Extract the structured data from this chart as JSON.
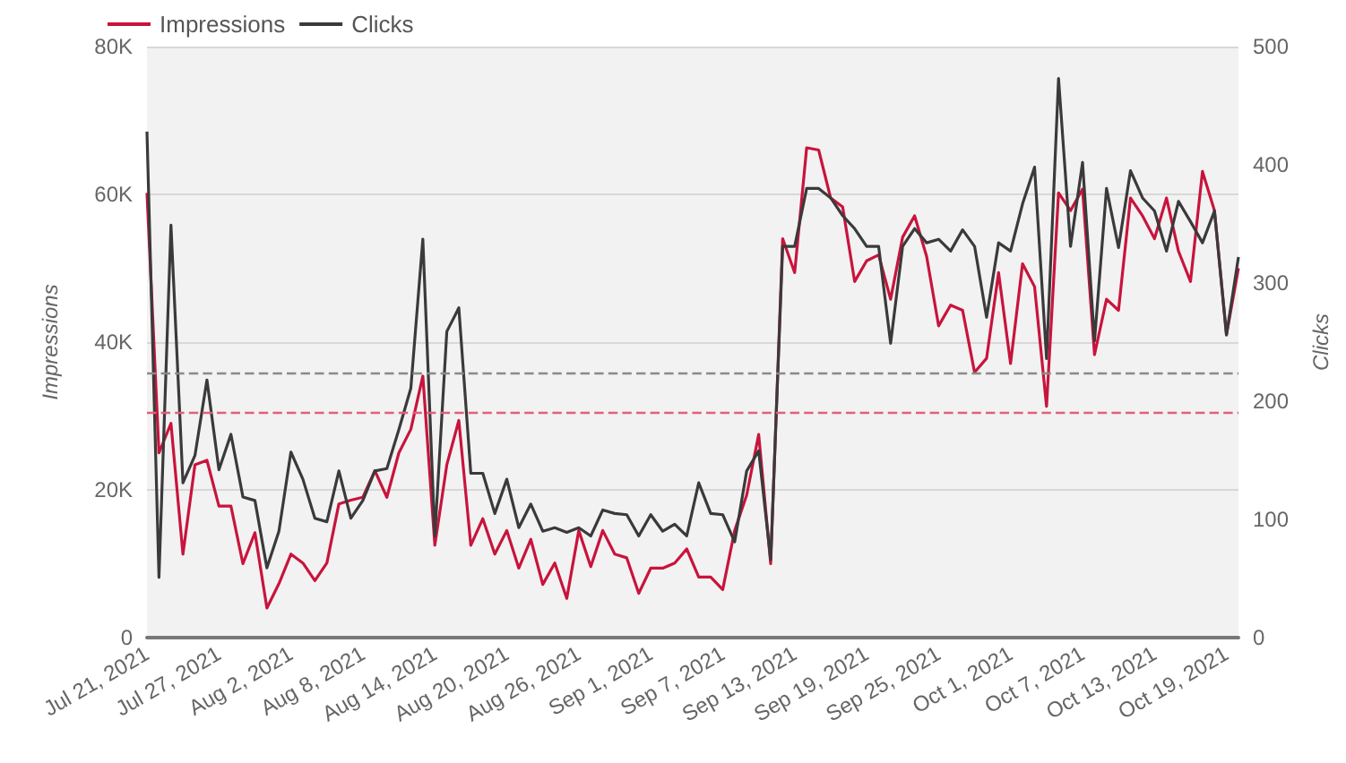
{
  "chart_data": {
    "type": "line",
    "ylabel": "Impressions",
    "y2label": "Clicks",
    "legend": "top left",
    "grid": "y",
    "marker": "none",
    "line_style": "solid",
    "x": [
      "2021-07-21",
      "2021-07-22",
      "2021-07-23",
      "2021-07-24",
      "2021-07-25",
      "2021-07-26",
      "2021-07-27",
      "2021-07-28",
      "2021-07-29",
      "2021-07-30",
      "2021-07-31",
      "2021-08-01",
      "2021-08-02",
      "2021-08-03",
      "2021-08-04",
      "2021-08-05",
      "2021-08-06",
      "2021-08-07",
      "2021-08-08",
      "2021-08-09",
      "2021-08-10",
      "2021-08-11",
      "2021-08-12",
      "2021-08-13",
      "2021-08-14",
      "2021-08-15",
      "2021-08-16",
      "2021-08-17",
      "2021-08-18",
      "2021-08-19",
      "2021-08-20",
      "2021-08-21",
      "2021-08-22",
      "2021-08-23",
      "2021-08-24",
      "2021-08-25",
      "2021-08-26",
      "2021-08-27",
      "2021-08-28",
      "2021-08-29",
      "2021-08-30",
      "2021-08-31",
      "2021-09-01",
      "2021-09-02",
      "2021-09-03",
      "2021-09-04",
      "2021-09-05",
      "2021-09-06",
      "2021-09-07",
      "2021-09-08",
      "2021-09-09",
      "2021-09-10",
      "2021-09-11",
      "2021-09-12",
      "2021-09-13",
      "2021-09-14",
      "2021-09-15",
      "2021-09-16",
      "2021-09-17",
      "2021-09-18",
      "2021-09-19",
      "2021-09-20",
      "2021-09-21",
      "2021-09-22",
      "2021-09-23",
      "2021-09-24",
      "2021-09-25",
      "2021-09-26",
      "2021-09-27",
      "2021-09-28",
      "2021-09-29",
      "2021-09-30",
      "2021-10-01",
      "2021-10-02",
      "2021-10-03",
      "2021-10-04",
      "2021-10-05",
      "2021-10-06",
      "2021-10-07",
      "2021-10-08",
      "2021-10-09",
      "2021-10-10",
      "2021-10-11",
      "2021-10-12",
      "2021-10-13",
      "2021-10-14",
      "2021-10-15",
      "2021-10-16",
      "2021-10-17",
      "2021-10-18",
      "2021-10-19",
      "2021-10-20"
    ],
    "xlim": [
      "2021-07-21",
      "2021-10-20"
    ],
    "xticks": [
      {
        "value": "2021-07-21",
        "label": "Jul 21, 2021"
      },
      {
        "value": "2021-07-27",
        "label": "Jul 27, 2021"
      },
      {
        "value": "2021-08-02",
        "label": "Aug 2, 2021"
      },
      {
        "value": "2021-08-08",
        "label": "Aug 8, 2021"
      },
      {
        "value": "2021-08-14",
        "label": "Aug 14, 2021"
      },
      {
        "value": "2021-08-20",
        "label": "Aug 20, 2021"
      },
      {
        "value": "2021-08-26",
        "label": "Aug 26, 2021"
      },
      {
        "value": "2021-09-01",
        "label": "Sep 1, 2021"
      },
      {
        "value": "2021-09-07",
        "label": "Sep 7, 2021"
      },
      {
        "value": "2021-09-13",
        "label": "Sep 13, 2021"
      },
      {
        "value": "2021-09-19",
        "label": "Sep 19, 2021"
      },
      {
        "value": "2021-09-25",
        "label": "Sep 25, 2021"
      },
      {
        "value": "2021-10-01",
        "label": "Oct 1, 2021"
      },
      {
        "value": "2021-10-07",
        "label": "Oct 7, 2021"
      },
      {
        "value": "2021-10-13",
        "label": "Oct 13, 2021"
      },
      {
        "value": "2021-10-19",
        "label": "Oct 19, 2021"
      }
    ],
    "ylim": [
      0,
      80000
    ],
    "yticks": [
      {
        "value": 0,
        "label": "0"
      },
      {
        "value": 20000,
        "label": "20K"
      },
      {
        "value": 40000,
        "label": "40K"
      },
      {
        "value": 60000,
        "label": "60K"
      },
      {
        "value": 80000,
        "label": "80K"
      }
    ],
    "y2lim": [
      0,
      500
    ],
    "y2ticks": [
      0,
      100,
      200,
      300,
      400,
      500
    ],
    "series": [
      {
        "name": "Impressions",
        "color": "#c8143c",
        "values": [
          60200,
          25000,
          29000,
          11300,
          23400,
          24000,
          17800,
          17800,
          10000,
          14200,
          4000,
          7300,
          11300,
          10100,
          7700,
          10100,
          18100,
          18600,
          19000,
          22600,
          19000,
          25000,
          28200,
          35400,
          12500,
          23400,
          29400,
          12500,
          16100,
          11300,
          14500,
          9400,
          13300,
          7200,
          10100,
          5300,
          14500,
          9600,
          14500,
          11300,
          10800,
          6000,
          9400,
          9400,
          10100,
          12000,
          8200,
          8200,
          6500,
          14500,
          19300,
          27500,
          10000,
          54000,
          49400,
          66300,
          66000,
          59500,
          58300,
          48200,
          51000,
          51800,
          45800,
          54200,
          57100,
          51600,
          42200,
          45000,
          44300,
          35900,
          37800,
          49400,
          37100,
          50600,
          47500,
          31300,
          60200,
          57800,
          60700,
          38300,
          45800,
          44300,
          59500,
          57100,
          54000,
          59500,
          52300,
          48200,
          63100,
          57800,
          41000,
          50000
        ]
      },
      {
        "name": "Clicks",
        "color": "#3a3a3a",
        "axis": "y2",
        "values": [
          428,
          51,
          349,
          131,
          154,
          218,
          142,
          172,
          119,
          116,
          59,
          90,
          157,
          134,
          101,
          98,
          141,
          101,
          116,
          141,
          143,
          176,
          211,
          337,
          86,
          259,
          279,
          139,
          139,
          105,
          134,
          93,
          113,
          90,
          93,
          89,
          93,
          86,
          108,
          105,
          104,
          86,
          104,
          90,
          96,
          86,
          131,
          105,
          104,
          81,
          141,
          158,
          66,
          331,
          331,
          380,
          380,
          372,
          357,
          346,
          331,
          331,
          249,
          331,
          346,
          334,
          337,
          327,
          345,
          331,
          271,
          334,
          327,
          367,
          398,
          236,
          473,
          331,
          402,
          251,
          380,
          330,
          395,
          372,
          361,
          327,
          369,
          352,
          334,
          361,
          256,
          322
        ]
      }
    ],
    "ref_lines": [
      {
        "axis": "y",
        "value": 30400,
        "color": "#e0607a",
        "line_style": "dashed"
      },
      {
        "axis": "y2",
        "value": 224,
        "color": "#8a8a8a",
        "line_style": "dashed"
      }
    ]
  }
}
